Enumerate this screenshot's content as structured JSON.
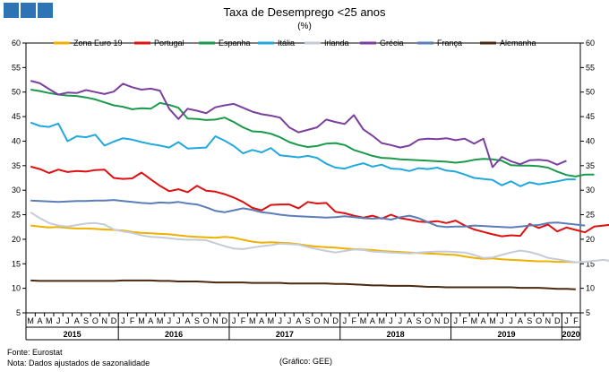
{
  "chart_data": {
    "type": "line",
    "title": "Taxa de Desemprego <25 anos",
    "subtitle": "(%)",
    "ylim": [
      5,
      60
    ],
    "y_ticks": [
      5,
      10,
      15,
      20,
      25,
      30,
      35,
      40,
      45,
      50,
      55,
      60
    ],
    "month_labels": [
      "M",
      "A",
      "M",
      "J",
      "J",
      "A",
      "S",
      "O",
      "N",
      "D",
      "J",
      "F",
      "M",
      "A",
      "M",
      "J",
      "J",
      "A",
      "S",
      "O",
      "N",
      "D",
      "J",
      "F",
      "M",
      "A",
      "M",
      "J",
      "J",
      "A",
      "S",
      "O",
      "N",
      "D",
      "J",
      "F",
      "M",
      "A",
      "M",
      "J",
      "J",
      "A",
      "S",
      "O",
      "N",
      "D",
      "J",
      "F",
      "M",
      "A",
      "M",
      "J",
      "J",
      "A",
      "S",
      "O",
      "N",
      "D",
      "J",
      "F"
    ],
    "year_labels": [
      "2015",
      "2016",
      "2017",
      "2018",
      "2019",
      "2020"
    ],
    "legend_position": "top",
    "series": [
      {
        "name": "Zona Euro 19",
        "color": "#f0b000",
        "values": [
          22.8,
          22.6,
          22.4,
          22.5,
          22.3,
          22.2,
          22.2,
          22.1,
          22.0,
          21.9,
          21.8,
          21.5,
          21.3,
          21.2,
          21.1,
          21.0,
          20.8,
          20.6,
          20.5,
          20.4,
          20.3,
          20.5,
          20.3,
          19.9,
          19.5,
          19.3,
          19.4,
          19.3,
          19.2,
          19.0,
          18.7,
          18.5,
          18.4,
          18.3,
          18.1,
          18.0,
          17.9,
          17.8,
          17.6,
          17.5,
          17.4,
          17.3,
          17.2,
          17.1,
          17.0,
          16.9,
          16.8,
          16.5,
          16.2,
          16.0,
          16.1,
          15.9,
          15.8,
          15.7,
          15.6,
          15.5,
          15.5,
          15.4,
          15.4,
          15.3
        ]
      },
      {
        "name": "Portugal",
        "color": "#dd1111",
        "values": [
          34.8,
          34.3,
          33.5,
          34.2,
          33.7,
          33.9,
          33.8,
          34.1,
          34.2,
          32.5,
          32.3,
          32.4,
          33.6,
          32.2,
          30.9,
          29.8,
          30.2,
          29.6,
          30.9,
          29.9,
          29.7,
          29.2,
          28.5,
          27.6,
          26.4,
          25.9,
          27.0,
          27.1,
          27.1,
          26.3,
          27.6,
          27.3,
          27.4,
          25.6,
          25.3,
          24.8,
          24.4,
          24.8,
          24.2,
          25.0,
          24.3,
          24.0,
          23.6,
          23.5,
          23.7,
          23.3,
          23.8,
          22.8,
          22.0,
          21.5,
          21.0,
          20.6,
          20.8,
          20.7,
          23.1,
          22.3,
          23.0,
          21.6,
          22.4,
          21.9,
          21.4,
          22.6,
          22.8,
          23.0
        ]
      },
      {
        "name": "Espanha",
        "color": "#1a9a4a",
        "values": [
          50.5,
          50.2,
          49.8,
          49.5,
          49.3,
          49.2,
          48.9,
          48.5,
          47.9,
          47.3,
          47.0,
          46.5,
          46.7,
          46.6,
          47.8,
          47.4,
          46.8,
          44.6,
          44.5,
          44.3,
          44.4,
          44.8,
          43.9,
          42.8,
          42.0,
          41.9,
          41.5,
          40.8,
          39.8,
          39.2,
          38.8,
          39.0,
          39.5,
          39.6,
          39.2,
          38.2,
          37.6,
          37.0,
          36.6,
          36.5,
          36.3,
          36.2,
          36.1,
          36.0,
          35.9,
          35.8,
          35.6,
          35.8,
          36.2,
          36.4,
          36.3,
          36.0,
          35.1,
          35.0,
          35.0,
          34.9,
          34.6,
          33.8,
          33.1,
          32.8,
          33.2,
          33.2
        ]
      },
      {
        "name": "Itália",
        "color": "#22a8dd",
        "values": [
          43.8,
          43.1,
          42.9,
          43.6,
          40.0,
          41.0,
          40.8,
          41.3,
          39.1,
          39.9,
          40.6,
          40.3,
          39.8,
          39.4,
          39.1,
          38.7,
          39.8,
          38.5,
          38.6,
          38.7,
          41.0,
          40.1,
          39.0,
          37.5,
          38.2,
          37.7,
          38.6,
          37.1,
          36.9,
          36.7,
          37.0,
          36.6,
          35.4,
          34.6,
          34.4,
          35.0,
          35.5,
          34.8,
          35.2,
          34.4,
          34.3,
          33.9,
          34.5,
          34.3,
          34.6,
          34.0,
          33.8,
          33.2,
          32.5,
          32.3,
          32.1,
          31.0,
          31.8,
          30.8,
          31.6,
          31.2,
          31.5,
          31.8,
          32.2,
          32.2
        ]
      },
      {
        "name": "Irlanda",
        "color": "#c4ccd6",
        "values": [
          25.5,
          24.3,
          23.3,
          22.8,
          22.6,
          22.9,
          23.2,
          23.3,
          23.0,
          22.0,
          21.6,
          21.3,
          20.8,
          20.5,
          20.4,
          20.2,
          20.0,
          19.9,
          19.9,
          19.8,
          19.2,
          18.6,
          18.1,
          18.0,
          18.3,
          18.6,
          18.8,
          19.1,
          19.0,
          18.9,
          18.4,
          18.0,
          17.6,
          17.3,
          17.6,
          17.9,
          17.8,
          17.5,
          17.4,
          17.3,
          17.2,
          17.1,
          17.3,
          17.4,
          17.5,
          17.5,
          17.4,
          17.3,
          16.8,
          16.2,
          16.3,
          16.8,
          17.3,
          17.7,
          17.4,
          16.9,
          16.2,
          15.9,
          15.6,
          15.3,
          15.4,
          15.6,
          15.8,
          15.5
        ]
      },
      {
        "name": "Grécia",
        "color": "#7b3fa0",
        "values": [
          52.3,
          51.8,
          50.6,
          49.5,
          49.9,
          49.8,
          50.4,
          50.0,
          49.6,
          50.1,
          51.7,
          51.0,
          50.5,
          50.7,
          50.3,
          46.6,
          44.5,
          46.6,
          46.2,
          45.7,
          46.9,
          47.3,
          47.6,
          46.8,
          46.0,
          45.5,
          45.2,
          44.8,
          42.8,
          41.8,
          42.3,
          42.8,
          44.4,
          43.9,
          43.5,
          45.3,
          42.4,
          41.1,
          39.6,
          39.2,
          38.7,
          39.1,
          40.3,
          40.5,
          40.4,
          40.6,
          40.2,
          40.5,
          39.5,
          40.5,
          34.7,
          36.8,
          35.9,
          35.3,
          36.1,
          36.2,
          36.0,
          35.2,
          36.0
        ]
      },
      {
        "name": "França",
        "color": "#5b7db8",
        "values": [
          27.9,
          27.8,
          27.7,
          27.6,
          27.7,
          27.8,
          27.8,
          27.9,
          27.9,
          28.0,
          27.8,
          27.6,
          27.4,
          27.3,
          27.5,
          27.4,
          27.6,
          27.3,
          27.1,
          26.5,
          25.8,
          25.5,
          25.9,
          26.3,
          26.0,
          25.5,
          25.3,
          25.0,
          24.8,
          24.7,
          24.6,
          24.5,
          24.4,
          24.5,
          24.7,
          24.5,
          24.3,
          24.2,
          24.3,
          24.0,
          24.5,
          24.8,
          24.3,
          23.5,
          22.7,
          22.5,
          22.6,
          22.6,
          22.8,
          22.7,
          22.6,
          22.5,
          22.4,
          22.6,
          22.8,
          22.9,
          23.3,
          23.4,
          23.2,
          23.0,
          22.8
        ]
      },
      {
        "name": "Alemanha",
        "color": "#4a2a10",
        "values": [
          11.6,
          11.5,
          11.5,
          11.5,
          11.5,
          11.5,
          11.5,
          11.5,
          11.5,
          11.5,
          11.6,
          11.6,
          11.6,
          11.6,
          11.5,
          11.5,
          11.4,
          11.4,
          11.4,
          11.3,
          11.2,
          11.2,
          11.2,
          11.2,
          11.1,
          11.1,
          11.1,
          11.1,
          11.0,
          11.0,
          11.0,
          11.0,
          11.0,
          10.9,
          10.9,
          10.8,
          10.7,
          10.6,
          10.6,
          10.5,
          10.5,
          10.5,
          10.4,
          10.3,
          10.3,
          10.2,
          10.2,
          10.2,
          10.2,
          10.2,
          10.2,
          10.2,
          10.2,
          10.1,
          10.1,
          10.1,
          10.0,
          9.9,
          9.9,
          9.8
        ]
      }
    ]
  },
  "footer": {
    "source": "Fonte: Eurostat",
    "note": "Nota: Dados ajustados de sazonalidade",
    "credit": "(Gráfico: GEE)"
  }
}
